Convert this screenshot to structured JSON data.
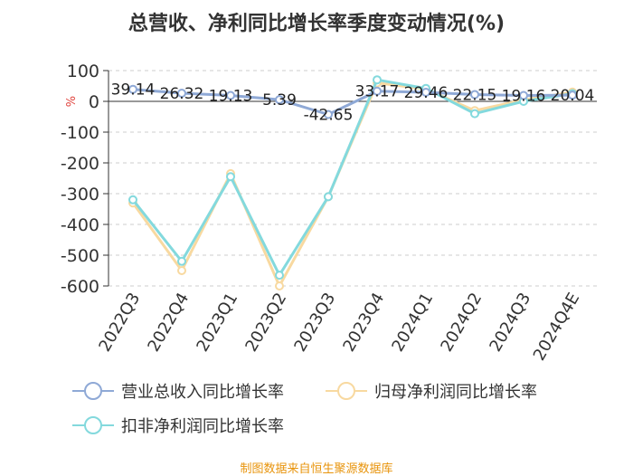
{
  "chart_data": {
    "type": "line",
    "title": "总营收、净利同比增长率季度变动情况(%)",
    "ylabel": "%",
    "categories": [
      "2022Q3",
      "2022Q4",
      "2023Q1",
      "2023Q2",
      "2023Q3",
      "2023Q4",
      "2024Q1",
      "2024Q2",
      "2024Q3",
      "2024Q4E"
    ],
    "ylim": [
      -600,
      100
    ],
    "yticks": [
      100,
      0,
      -100,
      -200,
      -300,
      -400,
      -500,
      -600
    ],
    "grid": true,
    "legend_position": "bottom",
    "series": [
      {
        "name": "营业总收入同比增长率",
        "color": "#8fa9d6",
        "values": [
          39.14,
          26.32,
          19.13,
          5.39,
          -42.65,
          33.17,
          29.46,
          22.15,
          19.16,
          20.04
        ],
        "labels": [
          "39.14",
          "26.32",
          "19.13",
          "5.39",
          "-42.65",
          "33.17",
          "29.46",
          "22.15",
          "19.16",
          "20.04"
        ]
      },
      {
        "name": "归母净利润同比增长率",
        "color": "#f8d9a0",
        "values": [
          -330,
          -550,
          -235,
          -600,
          -310,
          60,
          40,
          -30,
          5,
          30
        ]
      },
      {
        "name": "扣非净利润同比增长率",
        "color": "#83d9dd",
        "values": [
          -320,
          -520,
          -245,
          -565,
          -310,
          70,
          42,
          -40,
          0,
          25
        ]
      }
    ]
  },
  "source_note": "制图数据来自恒生聚源数据库"
}
